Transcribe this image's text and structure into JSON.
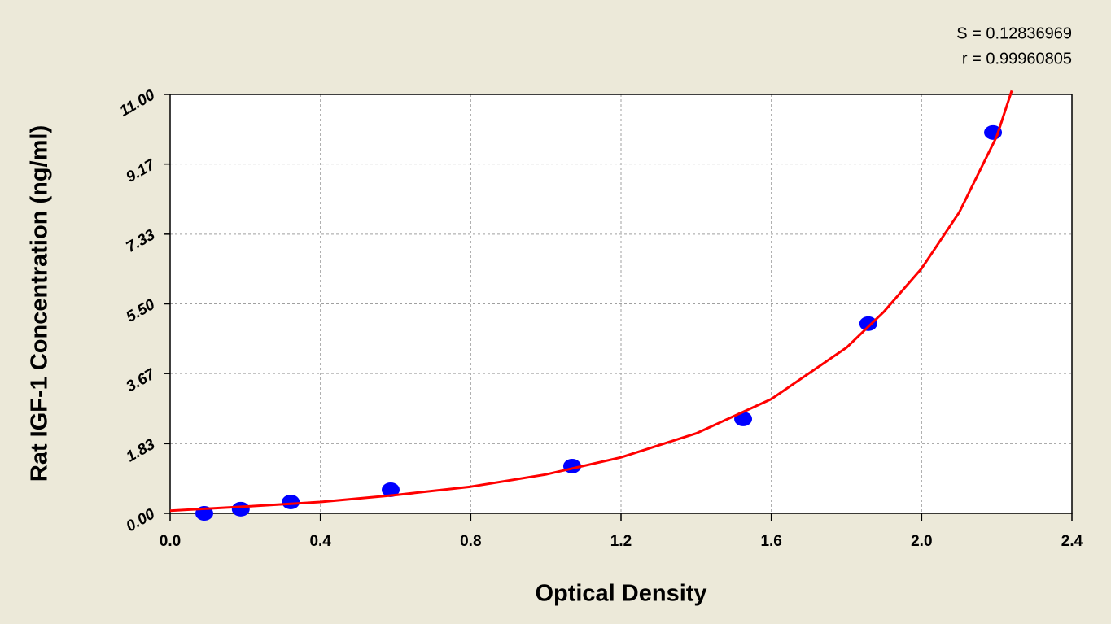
{
  "chart_data": {
    "type": "scatter",
    "x_label": "Optical Density",
    "y_label": "Rat IGF-1 Concentration (ng/ml)",
    "annotations": [
      "S = 0.12836969",
      "r = 0.99960805"
    ],
    "xlim": [
      0,
      2.4
    ],
    "ylim": [
      0,
      11
    ],
    "xticks": [
      {
        "value": 0,
        "label": "0.0"
      },
      0.4,
      0.8,
      1.2,
      1.6,
      {
        "value": 2,
        "label": "2.0"
      },
      2.4
    ],
    "yticks": [
      {
        "value": 0,
        "label": "0.00"
      },
      1.83,
      3.67,
      {
        "value": 5.5,
        "label": "5.50"
      },
      7.33,
      9.17,
      {
        "value": 11,
        "label": "11.00"
      }
    ],
    "grid": true,
    "series": [
      {
        "color": "#0000ff",
        "x": [
          0.091,
          0.188,
          0.321,
          0.587,
          1.07,
          1.525,
          1.858,
          2.19
        ],
        "values": [
          0,
          0.11,
          0.3,
          0.62,
          1.24,
          2.48,
          4.98,
          10.0
        ]
      },
      {
        "type": "line",
        "color": "#ff0000",
        "x": [
          0,
          0.2,
          0.4,
          0.6,
          0.8,
          1.0,
          1.2,
          1.4,
          1.6,
          1.8,
          1.9,
          2.0,
          2.1,
          2.2,
          2.24
        ],
        "values": [
          0.07,
          0.18,
          0.3,
          0.48,
          0.7,
          1.02,
          1.47,
          2.1,
          3.0,
          4.35,
          5.3,
          6.43,
          7.9,
          9.9,
          11.1
        ]
      }
    ]
  }
}
